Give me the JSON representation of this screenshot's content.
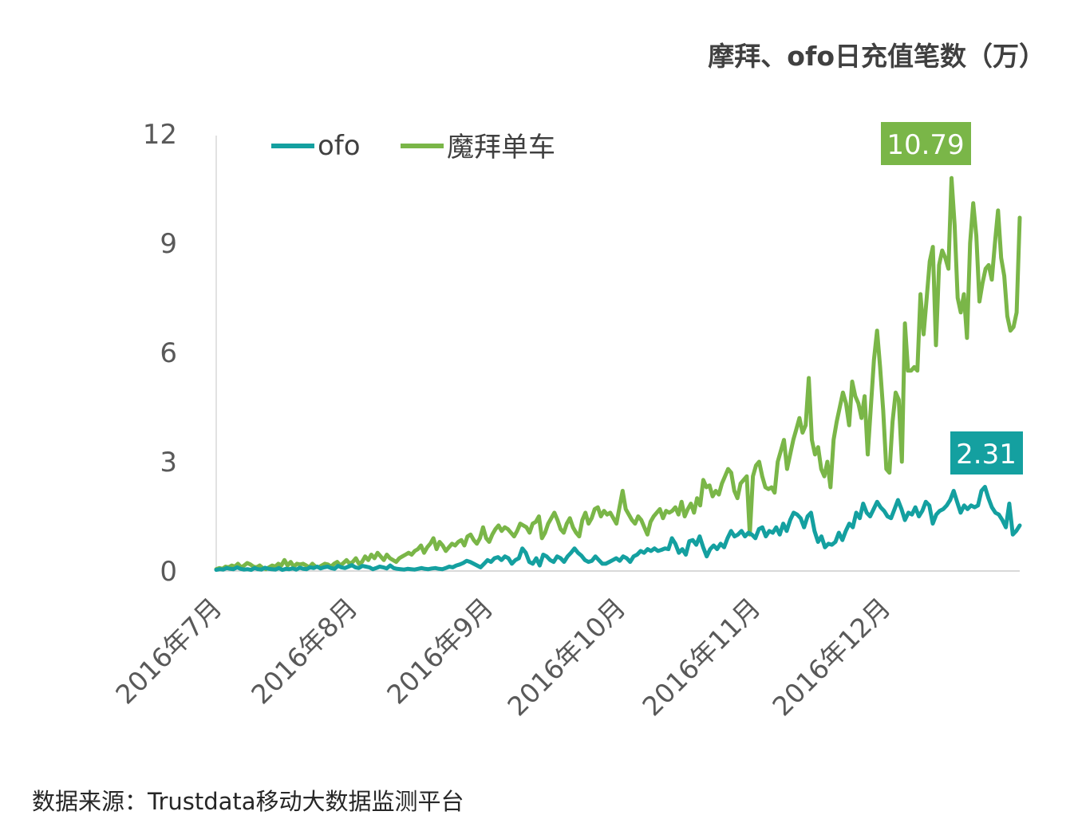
{
  "chart_data": {
    "type": "line",
    "title": "摩拜、ofo日充值笔数（万）",
    "ylim": [
      0,
      12
    ],
    "yticks": [
      "0",
      "3",
      "6",
      "9",
      "12"
    ],
    "x_tick_labels": [
      "2016年7月",
      "2016年8月",
      "2016年9月",
      "2016年10月",
      "2016年11月",
      "2016年12月"
    ],
    "x_period": "2016-07-01 to 2016-12-31 (daily, approximate readings)",
    "series": [
      {
        "name": "ofo",
        "color": "#14A0A0",
        "callout": "2.31",
        "values": [
          0.03,
          0.05,
          0.04,
          0.08,
          0.06,
          0.05,
          0.1,
          0.06,
          0.04,
          0.05,
          0.03,
          0.08,
          0.05,
          0.04,
          0.09,
          0.06,
          0.05,
          0.04,
          0.08,
          0.03,
          0.06,
          0.05,
          0.07,
          0.04,
          0.09,
          0.06,
          0.05,
          0.1,
          0.08,
          0.12,
          0.07,
          0.1,
          0.12,
          0.08,
          0.06,
          0.14,
          0.1,
          0.08,
          0.12,
          0.16,
          0.1,
          0.08,
          0.14,
          0.12,
          0.1,
          0.05,
          0.08,
          0.12,
          0.1,
          0.07,
          0.15,
          0.08,
          0.06,
          0.05,
          0.04,
          0.06,
          0.05,
          0.04,
          0.06,
          0.08,
          0.06,
          0.05,
          0.07,
          0.08,
          0.06,
          0.05,
          0.08,
          0.12,
          0.1,
          0.15,
          0.18,
          0.22,
          0.28,
          0.25,
          0.2,
          0.15,
          0.1,
          0.2,
          0.3,
          0.25,
          0.35,
          0.38,
          0.3,
          0.4,
          0.35,
          0.2,
          0.3,
          0.35,
          0.62,
          0.5,
          0.25,
          0.2,
          0.35,
          0.15,
          0.45,
          0.4,
          0.3,
          0.25,
          0.4,
          0.35,
          0.25,
          0.4,
          0.5,
          0.62,
          0.5,
          0.42,
          0.3,
          0.25,
          0.28,
          0.4,
          0.3,
          0.2,
          0.2,
          0.25,
          0.3,
          0.35,
          0.28,
          0.4,
          0.35,
          0.25,
          0.4,
          0.45,
          0.55,
          0.5,
          0.6,
          0.55,
          0.62,
          0.55,
          0.58,
          0.62,
          0.6,
          0.9,
          0.75,
          0.5,
          0.6,
          0.45,
          0.82,
          0.85,
          0.72,
          0.95,
          0.65,
          0.4,
          0.6,
          0.7,
          0.6,
          0.75,
          0.65,
          0.9,
          1.1,
          0.95,
          1.0,
          1.1,
          0.95,
          1.05,
          1.0,
          0.9,
          1.15,
          1.2,
          0.95,
          1.1,
          1.05,
          1.2,
          1.0,
          1.3,
          1.1,
          1.4,
          1.6,
          1.55,
          1.45,
          1.2,
          1.5,
          1.6,
          1.1,
          0.8,
          0.95,
          0.65,
          0.75,
          0.72,
          0.8,
          1.05,
          0.85,
          1.1,
          1.3,
          1.2,
          1.6,
          1.45,
          1.85,
          1.6,
          1.5,
          1.7,
          1.9,
          1.75,
          1.65,
          1.5,
          1.45,
          1.7,
          1.95,
          1.7,
          1.4,
          1.6,
          1.55,
          1.75,
          1.5,
          1.65,
          1.9,
          1.8,
          1.3,
          1.55,
          1.65,
          1.7,
          1.8,
          1.95,
          2.2,
          1.9,
          1.6,
          1.8,
          1.7,
          1.8,
          1.75,
          1.8,
          2.2,
          2.31,
          2.0,
          1.75,
          1.6,
          1.55,
          1.4,
          1.2,
          1.85,
          1.0,
          1.1,
          1.25
        ]
      },
      {
        "name": "魔拜单车",
        "color": "#7AB648",
        "callout": "10.79",
        "values": [
          0.05,
          0.08,
          0.06,
          0.12,
          0.1,
          0.15,
          0.12,
          0.2,
          0.1,
          0.15,
          0.22,
          0.18,
          0.12,
          0.1,
          0.15,
          0.08,
          0.05,
          0.1,
          0.15,
          0.12,
          0.2,
          0.15,
          0.3,
          0.15,
          0.25,
          0.12,
          0.2,
          0.18,
          0.2,
          0.15,
          0.1,
          0.2,
          0.12,
          0.1,
          0.15,
          0.2,
          0.18,
          0.12,
          0.2,
          0.25,
          0.15,
          0.22,
          0.3,
          0.2,
          0.25,
          0.35,
          0.2,
          0.25,
          0.4,
          0.3,
          0.45,
          0.35,
          0.5,
          0.4,
          0.3,
          0.45,
          0.35,
          0.3,
          0.25,
          0.35,
          0.4,
          0.45,
          0.5,
          0.45,
          0.55,
          0.6,
          0.7,
          0.5,
          0.65,
          0.75,
          0.9,
          0.6,
          0.8,
          0.7,
          0.55,
          0.65,
          0.75,
          0.7,
          0.8,
          0.85,
          0.7,
          0.95,
          1.0,
          0.85,
          0.75,
          0.9,
          1.2,
          0.9,
          0.8,
          1.0,
          1.15,
          1.25,
          1.1,
          1.2,
          1.15,
          1.05,
          0.95,
          1.1,
          1.3,
          1.25,
          1.2,
          1.05,
          1.3,
          1.35,
          1.5,
          0.9,
          1.05,
          1.3,
          1.45,
          1.6,
          1.4,
          1.15,
          1.05,
          1.3,
          1.45,
          1.2,
          1.05,
          0.95,
          1.4,
          1.6,
          1.3,
          1.45,
          1.7,
          1.75,
          1.5,
          1.65,
          1.55,
          1.6,
          1.45,
          1.3,
          1.75,
          2.2,
          1.7,
          1.55,
          1.4,
          1.3,
          1.5,
          1.4,
          1.2,
          1.0,
          1.35,
          1.5,
          1.6,
          1.7,
          1.45,
          1.65,
          1.6,
          1.65,
          1.75,
          1.55,
          1.9,
          1.5,
          1.7,
          1.85,
          1.6,
          2.0,
          1.8,
          2.5,
          2.3,
          2.35,
          2.05,
          2.2,
          2.1,
          2.4,
          2.6,
          2.8,
          2.7,
          2.2,
          2.0,
          2.4,
          2.5,
          2.6,
          1.0,
          2.6,
          2.9,
          3.0,
          2.6,
          2.3,
          2.25,
          2.3,
          2.15,
          3.0,
          3.3,
          3.6,
          2.8,
          3.2,
          3.6,
          3.9,
          4.2,
          3.8,
          4.0,
          5.3,
          3.6,
          3.2,
          3.4,
          2.8,
          2.6,
          3.0,
          2.3,
          3.6,
          4.1,
          4.5,
          4.9,
          4.6,
          4.0,
          5.2,
          4.8,
          4.6,
          4.2,
          4.8,
          3.2,
          4.5,
          5.8,
          6.6,
          5.6,
          4.4,
          2.8,
          2.7,
          4.1,
          4.9,
          4.7,
          3.0,
          6.8,
          5.5,
          5.5,
          5.6,
          5.5,
          7.6,
          6.5,
          7.5,
          8.5,
          8.9,
          6.2,
          8.4,
          8.8,
          8.6,
          8.3,
          10.79,
          9.5,
          7.5,
          7.1,
          7.6,
          6.4,
          9.0,
          10.1,
          9.2,
          7.4,
          7.9,
          8.3,
          8.4,
          8.0,
          9.0,
          9.9,
          8.6,
          8.1,
          7.0,
          6.6,
          6.7,
          7.1,
          9.7
        ]
      }
    ]
  },
  "source": "数据来源：Trustdata移动大数据监测平台"
}
